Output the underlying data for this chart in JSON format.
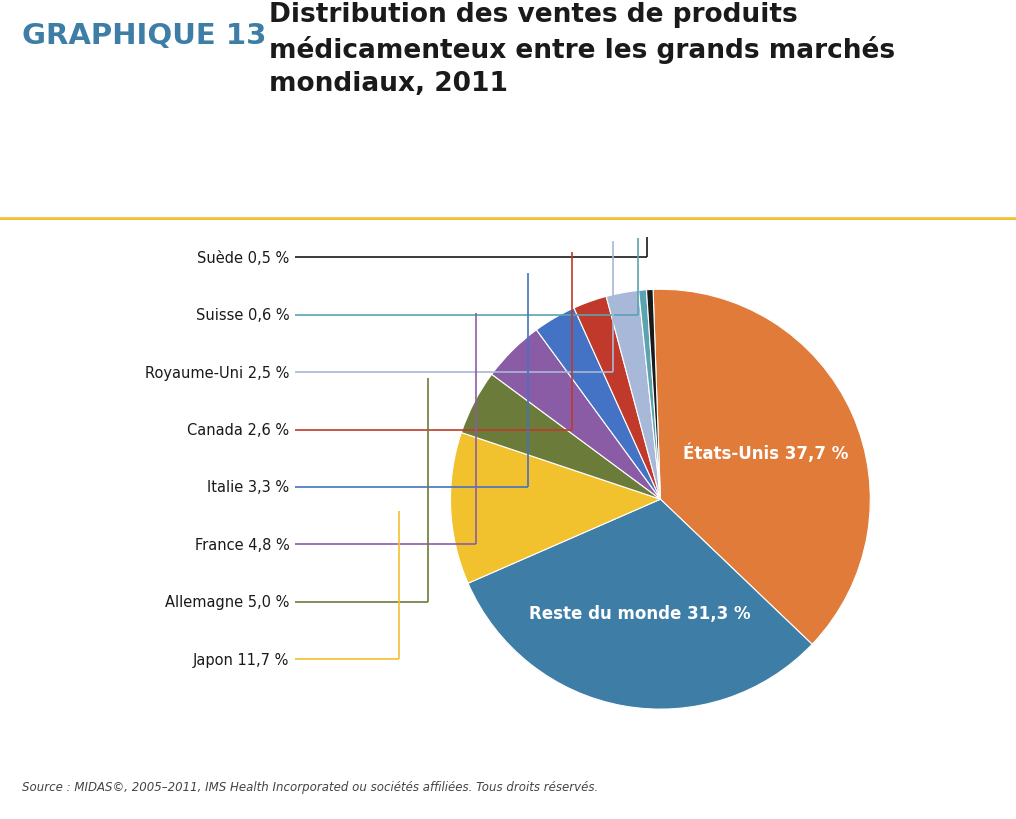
{
  "labels": [
    "États-Unis",
    "Reste du monde",
    "Japon",
    "Allemagne",
    "France",
    "Italie",
    "Canada",
    "Royaume-Uni",
    "Suisse",
    "Suède"
  ],
  "values": [
    37.7,
    31.3,
    11.7,
    5.0,
    4.8,
    3.3,
    2.6,
    2.5,
    0.6,
    0.5
  ],
  "colors": [
    "#E07B39",
    "#3E7EA6",
    "#F2C12E",
    "#6B7C3A",
    "#8B5CA6",
    "#4472C4",
    "#C0392B",
    "#A8B8D8",
    "#5BA3B0",
    "#1A1A1A"
  ],
  "graphique_label": "GRAPHIQUE 13",
  "title_line1": "Distribution des ventes de produits",
  "title_line2": "médicamenteux entre les grands marchés",
  "title_line3": "mondiaux, 2011",
  "source_text": "Source : MIDAS©, 2005–2011, IMS Health Incorporated ou sociétés affiliées. Tous droits réservés.",
  "graphique_color": "#3E7EA6",
  "title_color": "#1A1A1A",
  "separator_color": "#F2C12E",
  "bg_color": "#FFFFFF",
  "left_labels": [
    {
      "text": "Suède 0,5 %",
      "slice_idx": 9,
      "color": "#1A1A1A"
    },
    {
      "text": "Suisse 0,6 %",
      "slice_idx": 8,
      "color": "#5BA3B0"
    },
    {
      "text": "Royaume-Uni 2,5 %",
      "slice_idx": 7,
      "color": "#A8B8D8"
    },
    {
      "text": "Canada 2,6 %",
      "slice_idx": 6,
      "color": "#C0392B"
    },
    {
      "text": "Italie 3,3 %",
      "slice_idx": 5,
      "color": "#4472C4"
    },
    {
      "text": "France 4,8 %",
      "slice_idx": 4,
      "color": "#8B5CA6"
    },
    {
      "text": "Allemagne 5,0 %",
      "slice_idx": 3,
      "color": "#6B7C3A"
    },
    {
      "text": "Japon 11,7 %",
      "slice_idx": 2,
      "color": "#F2C12E"
    }
  ],
  "start_angle": 92,
  "inner_label_etatsunis": "États-Unis 37,7 %",
  "inner_label_reste": "Reste du monde 31,3 %"
}
